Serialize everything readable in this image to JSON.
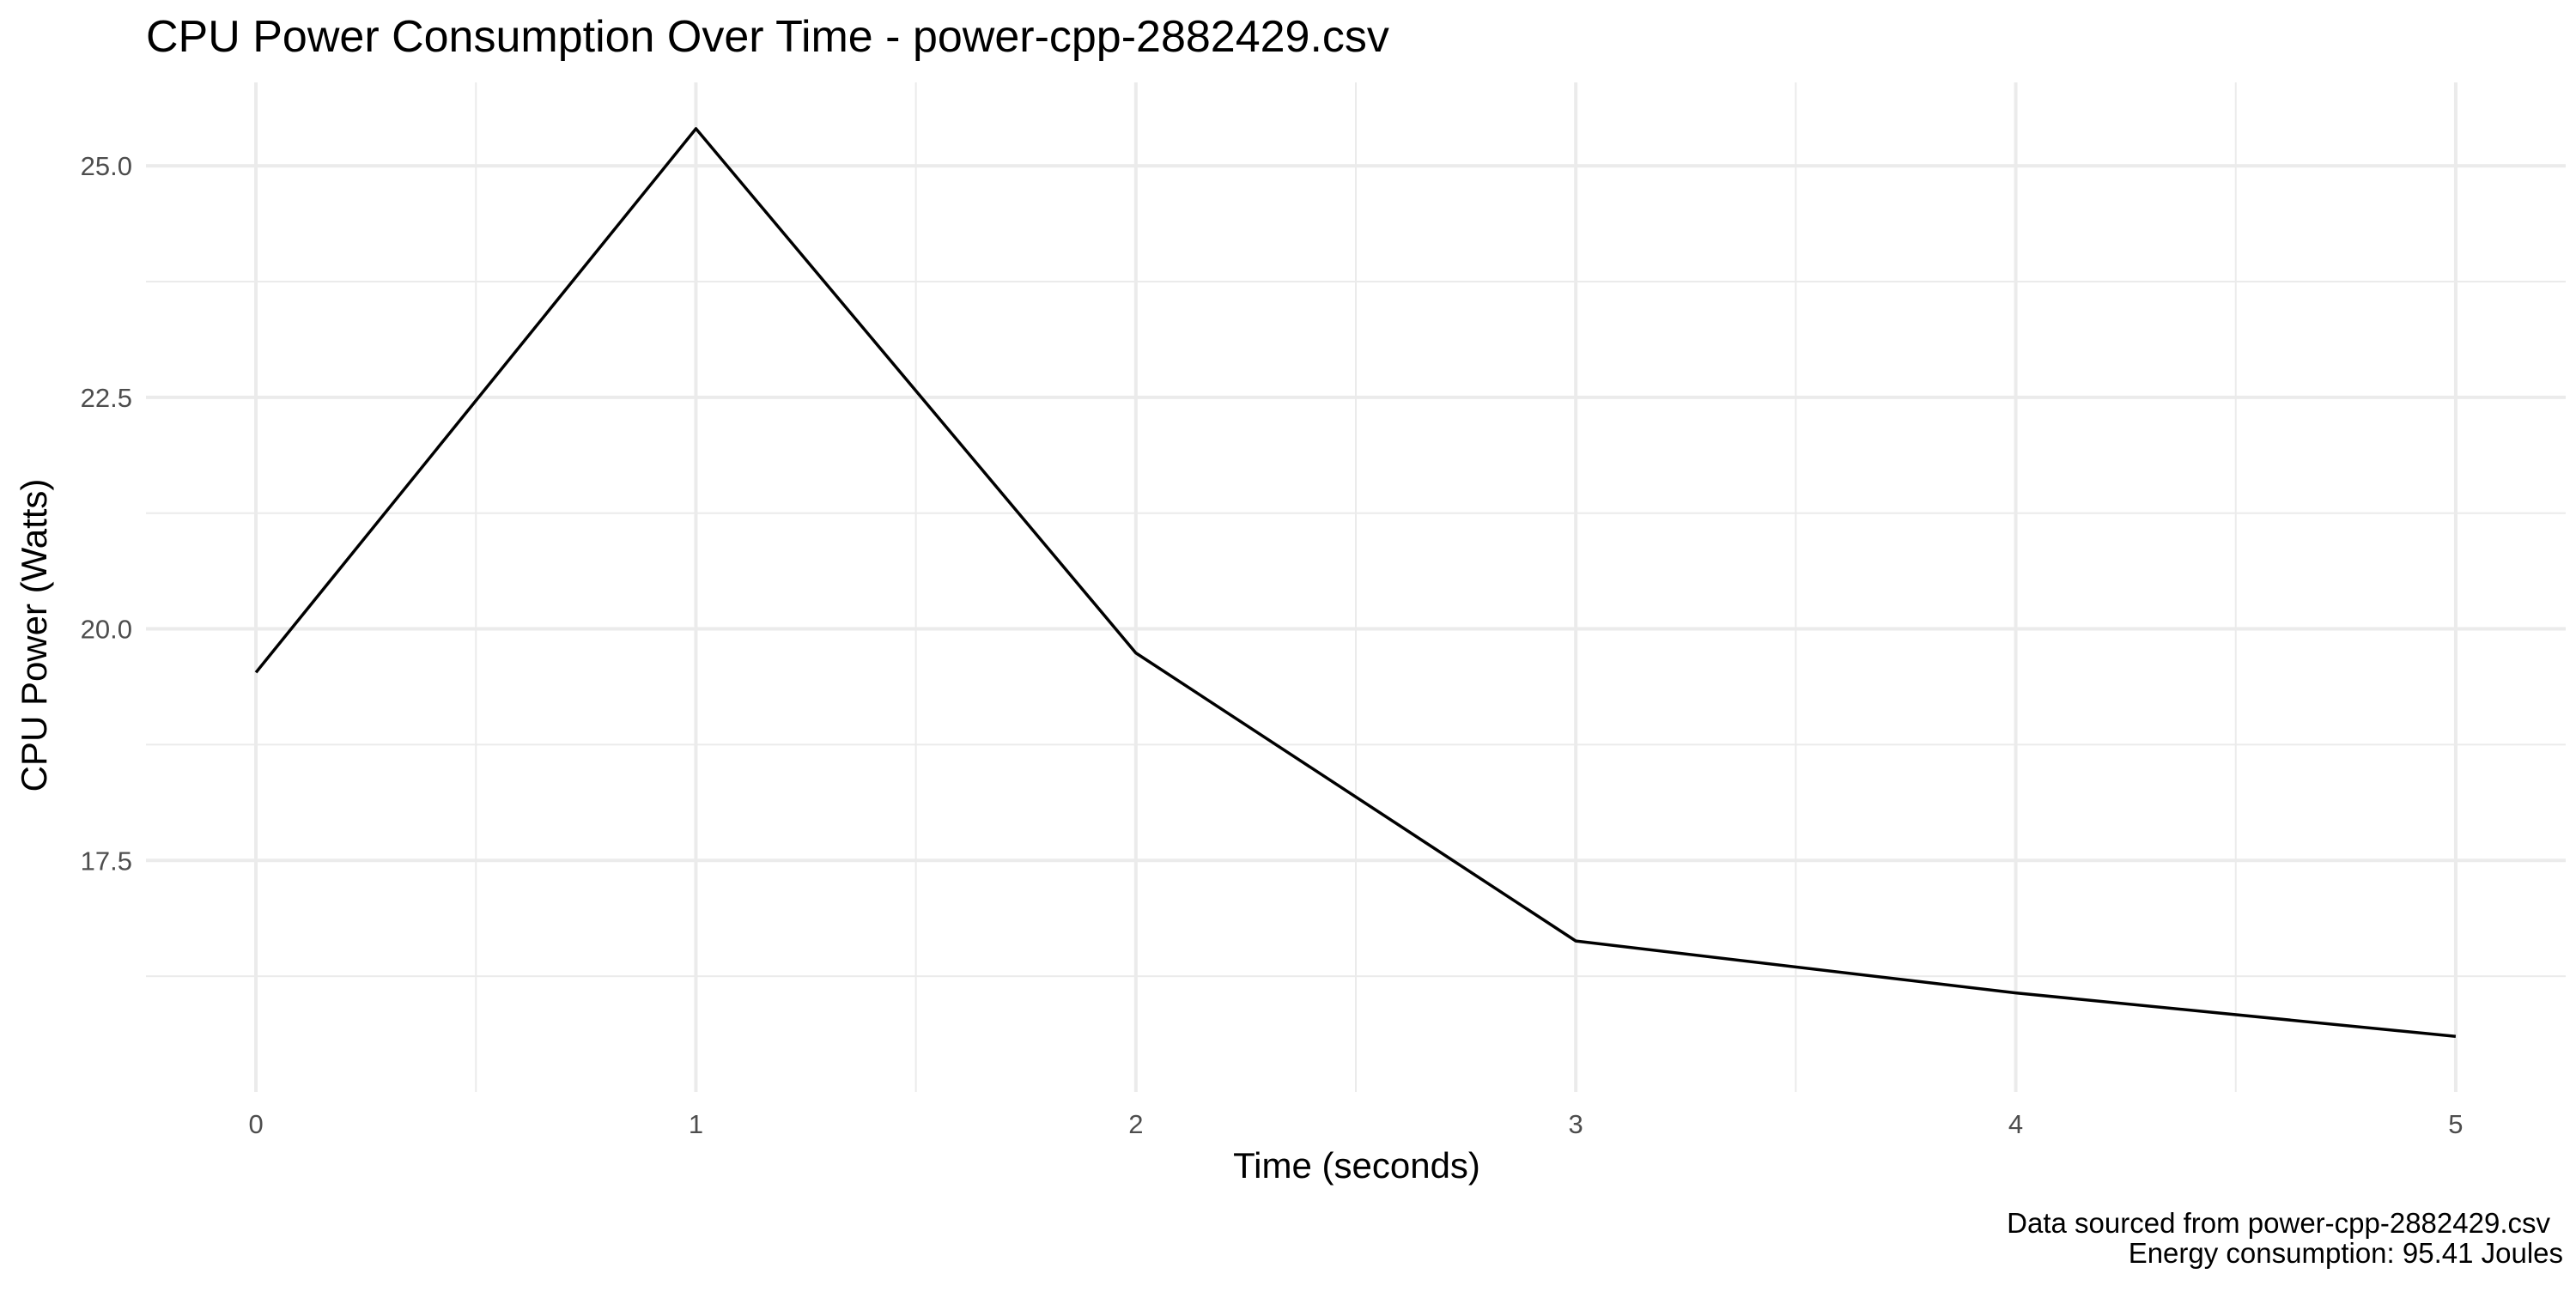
{
  "chart_data": {
    "type": "line",
    "title": "CPU Power Consumption Over Time - power-cpp-2882429.csv",
    "xlabel": "Time (seconds)",
    "ylabel": "CPU Power (Watts)",
    "caption_lines": [
      "Data sourced from power-cpp-2882429.csv",
      "Energy consumption:  95.41  Joules"
    ],
    "x": [
      0,
      1,
      2,
      3,
      4,
      5
    ],
    "series": [
      {
        "values": [
          19.53,
          25.4,
          19.74,
          16.63,
          16.07,
          15.6
        ]
      }
    ],
    "x_ticks": [
      0,
      1,
      2,
      3,
      4,
      5
    ],
    "x_tick_labels": [
      "0",
      "1",
      "2",
      "3",
      "4",
      "5"
    ],
    "y_ticks": [
      17.5,
      20.0,
      22.5,
      25.0
    ],
    "y_tick_labels": [
      "17.5",
      "20.0",
      "22.5",
      "25.0"
    ],
    "xlim": [
      -0.25,
      5.25
    ],
    "ylim": [
      15.0,
      25.9
    ],
    "grid": true,
    "line_color": "#000000",
    "grid_color": "#ebebeb",
    "background": "#ffffff"
  }
}
